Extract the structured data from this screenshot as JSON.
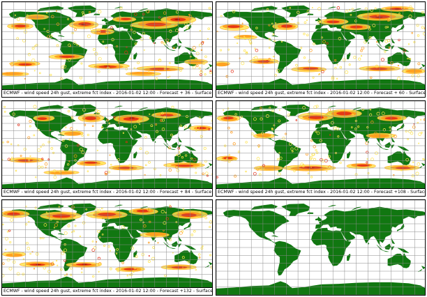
{
  "panels": [
    {
      "id": "p1",
      "caption": "ECMWF - wind speed 24h gust, extreme fct index - 2016-01-02 12:00 - Forecast + 36 - Surface",
      "lead_hours": 36,
      "has_data": true
    },
    {
      "id": "p2",
      "caption": "ECMWF - wind speed 24h gust, extreme fct index - 2016-01-02 12:00 - Forecast + 60 - Surface",
      "lead_hours": 60,
      "has_data": true
    },
    {
      "id": "p3",
      "caption": "ECMWF - wind speed 24h gust, extreme fct index - 2016-01-02 12:00 - Forecast + 84 - Surface",
      "lead_hours": 84,
      "has_data": true
    },
    {
      "id": "p4",
      "caption": "ECMWF - wind speed 24h gust, extreme fct index - 2016-01-02 12:00 - Forecast +108 - Surface",
      "lead_hours": 108,
      "has_data": true
    },
    {
      "id": "p5",
      "caption": "ECMWF - wind speed 24h gust, extreme fct index - 2016-01-02 12:00 - Forecast +132 - Surface",
      "lead_hours": 132,
      "has_data": true
    },
    {
      "id": "p6",
      "caption": "",
      "lead_hours": null,
      "has_data": false
    }
  ],
  "colors": {
    "land": "#117711",
    "grid": "#8a8a8a",
    "ocean": "#ffffff",
    "efi_low": "#ffe34d",
    "efi_mid": "#ff9a1a",
    "efi_high": "#e22b14",
    "efi_max": "#9a0d05"
  },
  "projection": "cylindrical equidistant, 30-degree graticule"
}
